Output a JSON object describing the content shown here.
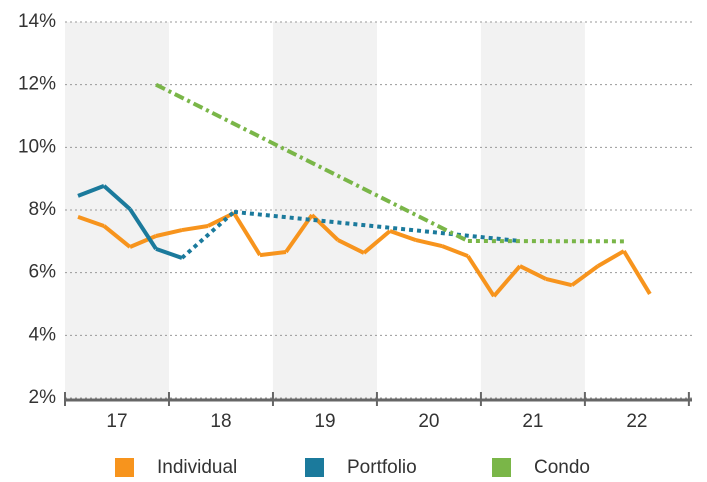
{
  "chart_data": {
    "type": "line",
    "xlim": [
      16.5,
      22.53
    ],
    "xticks": [
      16.5,
      17.5,
      18.5,
      19.5,
      20.5,
      21.5,
      22.5
    ],
    "xlabels": [
      {
        "value": 17,
        "label": "17"
      },
      {
        "value": 18,
        "label": "18"
      },
      {
        "value": 19,
        "label": "19"
      },
      {
        "value": 20,
        "label": "20"
      },
      {
        "value": 21,
        "label": "21"
      },
      {
        "value": 22,
        "label": "22"
      }
    ],
    "bands": [
      [
        16.5,
        17.5
      ],
      [
        18.5,
        19.5
      ],
      [
        20.5,
        21.5
      ]
    ],
    "ylim": [
      2,
      14
    ],
    "yticks": [
      {
        "value": 2,
        "label": "2%"
      },
      {
        "value": 4,
        "label": "4%"
      },
      {
        "value": 6,
        "label": "6%"
      },
      {
        "value": 8,
        "label": "8%"
      },
      {
        "value": 10,
        "label": "10%"
      },
      {
        "value": 12,
        "label": "12%"
      },
      {
        "value": 14,
        "label": "14%"
      }
    ],
    "grid": true,
    "legend": "bottom",
    "series": [
      {
        "name": "Individual",
        "color": "#f7941d",
        "x": [
          16.625,
          16.875,
          17.125,
          17.375,
          17.625,
          17.875,
          18.125,
          18.375,
          18.625,
          18.875,
          19.125,
          19.375,
          19.625,
          19.875,
          20.125,
          20.375,
          20.625,
          20.875,
          21.125,
          21.375,
          21.625,
          21.875,
          22.125
        ],
        "values": [
          7.78,
          7.49,
          6.82,
          7.17,
          7.36,
          7.49,
          7.9,
          6.56,
          6.66,
          7.84,
          7.04,
          6.63,
          7.33,
          7.04,
          6.85,
          6.53,
          5.25,
          6.21,
          5.8,
          5.6,
          6.21,
          6.69,
          5.32
        ],
        "segment_styles": [
          "solid",
          "solid",
          "solid",
          "solid",
          "solid",
          "solid",
          "solid",
          "solid",
          "solid",
          "solid",
          "solid",
          "solid",
          "solid",
          "solid",
          "solid",
          "solid",
          "solid",
          "solid",
          "solid",
          "solid",
          "solid",
          "solid"
        ]
      },
      {
        "name": "Portfolio",
        "color": "#1b7a9c",
        "x": [
          16.625,
          16.875,
          17.125,
          17.375,
          17.625,
          18.125,
          20.875
        ],
        "values": [
          8.45,
          8.77,
          8.03,
          6.76,
          6.47,
          7.94,
          7.01
        ],
        "segment_styles": [
          "solid",
          "solid",
          "solid",
          "solid",
          "dotted",
          "dotted"
        ]
      },
      {
        "name": "Condo",
        "color": "#7ab648",
        "x": [
          17.375,
          20.375,
          21.875
        ],
        "values": [
          12.0,
          7.01,
          7.0
        ],
        "segment_styles": [
          "dashdot",
          "dotted"
        ]
      }
    ]
  }
}
